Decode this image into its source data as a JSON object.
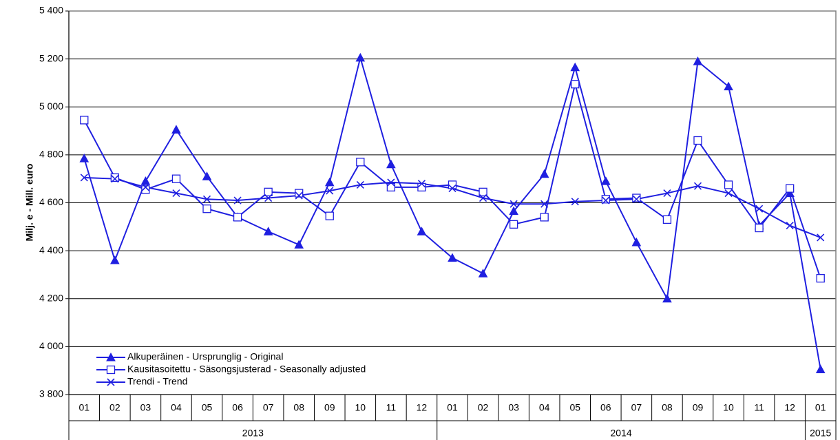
{
  "chart_data": {
    "type": "line",
    "y_label": "Milj. e - Mill. euro",
    "groups": [
      {
        "label": "2013",
        "categories": [
          "01",
          "02",
          "03",
          "04",
          "05",
          "06",
          "07",
          "08",
          "09",
          "10",
          "11",
          "12"
        ]
      },
      {
        "label": "2014",
        "categories": [
          "01",
          "02",
          "03",
          "04",
          "05",
          "06",
          "07",
          "08",
          "09",
          "10",
          "11",
          "12"
        ]
      },
      {
        "label": "2015",
        "categories": [
          "01"
        ]
      }
    ],
    "ylim": [
      3800,
      5400
    ],
    "yticks": [
      {
        "value": 3800,
        "label": "3 800"
      },
      {
        "value": 4000,
        "label": "4 000"
      },
      {
        "value": 4200,
        "label": "4 200"
      },
      {
        "value": 4400,
        "label": "4 400"
      },
      {
        "value": 4600,
        "label": "4 600"
      },
      {
        "value": 4800,
        "label": "4 800"
      },
      {
        "value": 5000,
        "label": "5 000"
      },
      {
        "value": 5200,
        "label": "5 200"
      },
      {
        "value": 5400,
        "label": "5 400"
      }
    ],
    "grid": true,
    "legend": "lower left",
    "series": [
      {
        "name": "Alkuperäinen - Ursprunglig - Original",
        "color": "#1f1fe0",
        "marker": "triangle",
        "values": [
          4785,
          4360,
          4690,
          4905,
          4710,
          4540,
          4480,
          4425,
          4685,
          5205,
          4760,
          4480,
          4370,
          4305,
          4565,
          4720,
          5165,
          4690,
          4435,
          4200,
          5190,
          5085,
          4505,
          4640,
          3905
        ]
      },
      {
        "name": "Kausitasoitettu - Säsongsjusterad - Seasonally adjusted",
        "color": "#1f1fe0",
        "marker": "square",
        "values": [
          4945,
          4705,
          4655,
          4700,
          4575,
          4540,
          4645,
          4640,
          4545,
          4770,
          4665,
          4665,
          4675,
          4645,
          4510,
          4540,
          5095,
          4615,
          4620,
          4530,
          4860,
          4675,
          4495,
          4660,
          4285
        ]
      },
      {
        "name": "Trendi - Trend",
        "color": "#1f1fe0",
        "marker": "x",
        "values": [
          4705,
          4700,
          4665,
          4640,
          4615,
          4610,
          4620,
          4630,
          4650,
          4675,
          4685,
          4680,
          4660,
          4620,
          4595,
          4595,
          4605,
          4610,
          4615,
          4640,
          4670,
          4640,
          4575,
          4505,
          4455
        ]
      }
    ]
  }
}
